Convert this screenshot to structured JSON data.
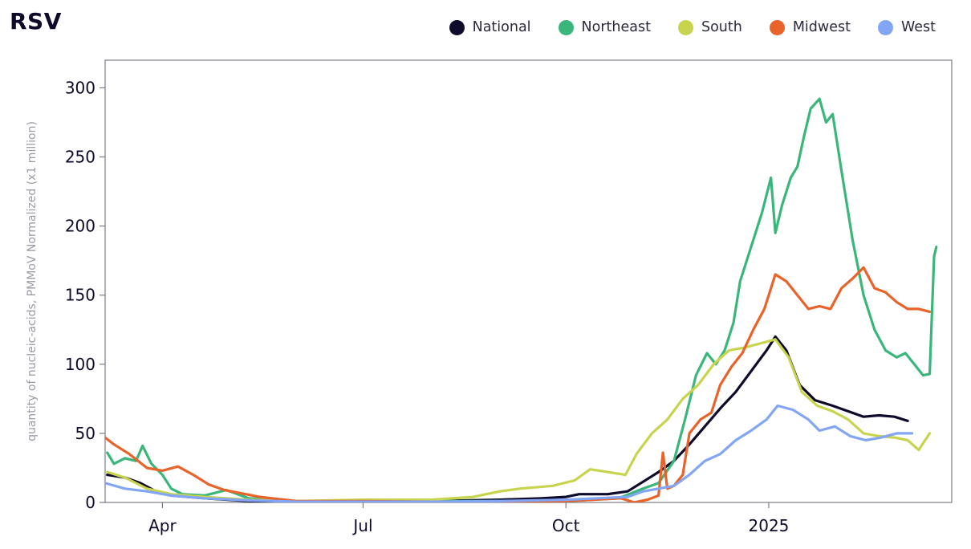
{
  "chart_data": {
    "type": "line",
    "title": "RSV",
    "ylabel": "quantity of nucleic-acids, PMMoV Normalized (x1 million)",
    "xlabel": "",
    "xlim": [
      "2024-03-06",
      "2025-03-25"
    ],
    "ylim": [
      0,
      320
    ],
    "yticks": [
      0,
      50,
      100,
      150,
      200,
      250,
      300
    ],
    "xticks": [
      {
        "date": "2024-04-01",
        "label": "Apr"
      },
      {
        "date": "2024-07-01",
        "label": "Jul"
      },
      {
        "date": "2024-10-01",
        "label": "Oct"
      },
      {
        "date": "2025-01-01",
        "label": "2025"
      }
    ],
    "grid": false,
    "legend_position": "top-right",
    "series": [
      {
        "name": "National",
        "color": "#0e0a2b",
        "points": [
          [
            "2024-03-07",
            20
          ],
          [
            "2024-03-15",
            18
          ],
          [
            "2024-03-22",
            14
          ],
          [
            "2024-03-29",
            8
          ],
          [
            "2024-04-05",
            5
          ],
          [
            "2024-04-20",
            3
          ],
          [
            "2024-05-10",
            1
          ],
          [
            "2024-06-01",
            0.5
          ],
          [
            "2024-07-01",
            1
          ],
          [
            "2024-08-01",
            1
          ],
          [
            "2024-09-01",
            2
          ],
          [
            "2024-09-20",
            3
          ],
          [
            "2024-10-01",
            4
          ],
          [
            "2024-10-07",
            6
          ],
          [
            "2024-10-20",
            6
          ],
          [
            "2024-10-29",
            8
          ],
          [
            "2024-11-05",
            15
          ],
          [
            "2024-11-12",
            22
          ],
          [
            "2024-11-19",
            30
          ],
          [
            "2024-11-26",
            42
          ],
          [
            "2024-12-03",
            55
          ],
          [
            "2024-12-10",
            68
          ],
          [
            "2024-12-17",
            80
          ],
          [
            "2024-12-24",
            95
          ],
          [
            "2024-12-31",
            110
          ],
          [
            "2025-01-04",
            120
          ],
          [
            "2025-01-09",
            110
          ],
          [
            "2025-01-15",
            85
          ],
          [
            "2025-01-22",
            74
          ],
          [
            "2025-01-30",
            70
          ],
          [
            "2025-02-06",
            66
          ],
          [
            "2025-02-13",
            62
          ],
          [
            "2025-02-20",
            63
          ],
          [
            "2025-02-27",
            62
          ],
          [
            "2025-03-05",
            59
          ]
        ]
      },
      {
        "name": "Northeast",
        "color": "#3ab67a",
        "points": [
          [
            "2024-03-07",
            36
          ],
          [
            "2024-03-10",
            28
          ],
          [
            "2024-03-15",
            32
          ],
          [
            "2024-03-20",
            30
          ],
          [
            "2024-03-23",
            41
          ],
          [
            "2024-03-27",
            28
          ],
          [
            "2024-04-01",
            20
          ],
          [
            "2024-04-05",
            10
          ],
          [
            "2024-04-10",
            6
          ],
          [
            "2024-04-20",
            5
          ],
          [
            "2024-04-30",
            9
          ],
          [
            "2024-05-10",
            3
          ],
          [
            "2024-06-01",
            1
          ],
          [
            "2024-07-01",
            1
          ],
          [
            "2024-08-01",
            1
          ],
          [
            "2024-09-01",
            1
          ],
          [
            "2024-10-01",
            1
          ],
          [
            "2024-10-25",
            3
          ],
          [
            "2024-11-05",
            10
          ],
          [
            "2024-11-12",
            14
          ],
          [
            "2024-11-19",
            30
          ],
          [
            "2024-11-24",
            60
          ],
          [
            "2024-11-29",
            92
          ],
          [
            "2024-12-04",
            108
          ],
          [
            "2024-12-08",
            100
          ],
          [
            "2024-12-12",
            110
          ],
          [
            "2024-12-16",
            130
          ],
          [
            "2024-12-19",
            160
          ],
          [
            "2024-12-24",
            185
          ],
          [
            "2024-12-29",
            210
          ],
          [
            "2025-01-02",
            235
          ],
          [
            "2025-01-04",
            195
          ],
          [
            "2025-01-07",
            215
          ],
          [
            "2025-01-11",
            235
          ],
          [
            "2025-01-14",
            243
          ],
          [
            "2025-01-17",
            265
          ],
          [
            "2025-01-20",
            285
          ],
          [
            "2025-01-24",
            292
          ],
          [
            "2025-01-27",
            275
          ],
          [
            "2025-01-30",
            281
          ],
          [
            "2025-02-03",
            240
          ],
          [
            "2025-02-08",
            190
          ],
          [
            "2025-02-13",
            150
          ],
          [
            "2025-02-18",
            125
          ],
          [
            "2025-02-23",
            110
          ],
          [
            "2025-02-28",
            105
          ],
          [
            "2025-03-04",
            108
          ],
          [
            "2025-03-08",
            100
          ],
          [
            "2025-03-12",
            92
          ],
          [
            "2025-03-15",
            93
          ],
          [
            "2025-03-17",
            178
          ],
          [
            "2025-03-18",
            185
          ]
        ]
      },
      {
        "name": "South",
        "color": "#c8d44e",
        "points": [
          [
            "2024-03-07",
            22
          ],
          [
            "2024-03-15",
            18
          ],
          [
            "2024-03-25",
            10
          ],
          [
            "2024-04-05",
            6
          ],
          [
            "2024-04-20",
            4
          ],
          [
            "2024-05-10",
            2
          ],
          [
            "2024-06-01",
            1
          ],
          [
            "2024-07-01",
            2
          ],
          [
            "2024-08-01",
            2
          ],
          [
            "2024-08-20",
            4
          ],
          [
            "2024-09-01",
            8
          ],
          [
            "2024-09-10",
            10
          ],
          [
            "2024-09-25",
            12
          ],
          [
            "2024-10-05",
            16
          ],
          [
            "2024-10-12",
            24
          ],
          [
            "2024-10-20",
            22
          ],
          [
            "2024-10-28",
            20
          ],
          [
            "2024-11-02",
            35
          ],
          [
            "2024-11-09",
            50
          ],
          [
            "2024-11-16",
            60
          ],
          [
            "2024-11-23",
            75
          ],
          [
            "2024-11-30",
            85
          ],
          [
            "2024-12-07",
            100
          ],
          [
            "2024-12-14",
            110
          ],
          [
            "2024-12-21",
            112
          ],
          [
            "2024-12-28",
            115
          ],
          [
            "2025-01-04",
            118
          ],
          [
            "2025-01-10",
            105
          ],
          [
            "2025-01-16",
            80
          ],
          [
            "2025-01-23",
            70
          ],
          [
            "2025-01-30",
            66
          ],
          [
            "2025-02-06",
            60
          ],
          [
            "2025-02-13",
            50
          ],
          [
            "2025-02-20",
            48
          ],
          [
            "2025-02-27",
            47
          ],
          [
            "2025-03-05",
            45
          ],
          [
            "2025-03-10",
            38
          ],
          [
            "2025-03-15",
            50
          ]
        ]
      },
      {
        "name": "Midwest",
        "color": "#e8622a",
        "points": [
          [
            "2024-03-06",
            47
          ],
          [
            "2024-03-10",
            42
          ],
          [
            "2024-03-17",
            35
          ],
          [
            "2024-03-25",
            25
          ],
          [
            "2024-04-01",
            23
          ],
          [
            "2024-04-08",
            26
          ],
          [
            "2024-04-15",
            20
          ],
          [
            "2024-04-22",
            13
          ],
          [
            "2024-04-29",
            9
          ],
          [
            "2024-05-15",
            4
          ],
          [
            "2024-06-01",
            1
          ],
          [
            "2024-07-01",
            1
          ],
          [
            "2024-08-01",
            0.5
          ],
          [
            "2024-09-01",
            0.5
          ],
          [
            "2024-10-01",
            1
          ],
          [
            "2024-10-26",
            3
          ],
          [
            "2024-11-01",
            0
          ],
          [
            "2024-11-07",
            2
          ],
          [
            "2024-11-12",
            5
          ],
          [
            "2024-11-14",
            36
          ],
          [
            "2024-11-16",
            10
          ],
          [
            "2024-11-19",
            12
          ],
          [
            "2024-11-23",
            20
          ],
          [
            "2024-11-26",
            50
          ],
          [
            "2024-12-01",
            60
          ],
          [
            "2024-12-06",
            65
          ],
          [
            "2024-12-10",
            85
          ],
          [
            "2024-12-15",
            98
          ],
          [
            "2024-12-20",
            108
          ],
          [
            "2024-12-25",
            125
          ],
          [
            "2024-12-30",
            140
          ],
          [
            "2025-01-04",
            165
          ],
          [
            "2025-01-09",
            160
          ],
          [
            "2025-01-14",
            150
          ],
          [
            "2025-01-19",
            140
          ],
          [
            "2025-01-24",
            142
          ],
          [
            "2025-01-29",
            140
          ],
          [
            "2025-02-03",
            155
          ],
          [
            "2025-02-08",
            162
          ],
          [
            "2025-02-13",
            170
          ],
          [
            "2025-02-18",
            155
          ],
          [
            "2025-02-23",
            152
          ],
          [
            "2025-02-28",
            145
          ],
          [
            "2025-03-05",
            140
          ],
          [
            "2025-03-10",
            140
          ],
          [
            "2025-03-15",
            138
          ]
        ]
      },
      {
        "name": "West",
        "color": "#82a6f5",
        "points": [
          [
            "2024-03-06",
            14
          ],
          [
            "2024-03-15",
            10
          ],
          [
            "2024-03-25",
            8
          ],
          [
            "2024-04-05",
            5
          ],
          [
            "2024-04-20",
            3
          ],
          [
            "2024-05-10",
            1.5
          ],
          [
            "2024-06-01",
            0.5
          ],
          [
            "2024-07-01",
            0.5
          ],
          [
            "2024-08-01",
            0.5
          ],
          [
            "2024-09-01",
            1
          ],
          [
            "2024-10-01",
            2
          ],
          [
            "2024-10-15",
            3
          ],
          [
            "2024-10-29",
            4
          ],
          [
            "2024-11-05",
            8
          ],
          [
            "2024-11-12",
            10
          ],
          [
            "2024-11-19",
            12
          ],
          [
            "2024-11-26",
            20
          ],
          [
            "2024-12-03",
            30
          ],
          [
            "2024-12-10",
            35
          ],
          [
            "2024-12-17",
            45
          ],
          [
            "2024-12-24",
            52
          ],
          [
            "2024-12-31",
            60
          ],
          [
            "2025-01-05",
            70
          ],
          [
            "2025-01-12",
            67
          ],
          [
            "2025-01-19",
            60
          ],
          [
            "2025-01-24",
            52
          ],
          [
            "2025-01-31",
            55
          ],
          [
            "2025-02-07",
            48
          ],
          [
            "2025-02-14",
            45
          ],
          [
            "2025-02-21",
            47
          ],
          [
            "2025-02-28",
            50
          ],
          [
            "2025-03-07",
            50
          ]
        ]
      }
    ]
  }
}
